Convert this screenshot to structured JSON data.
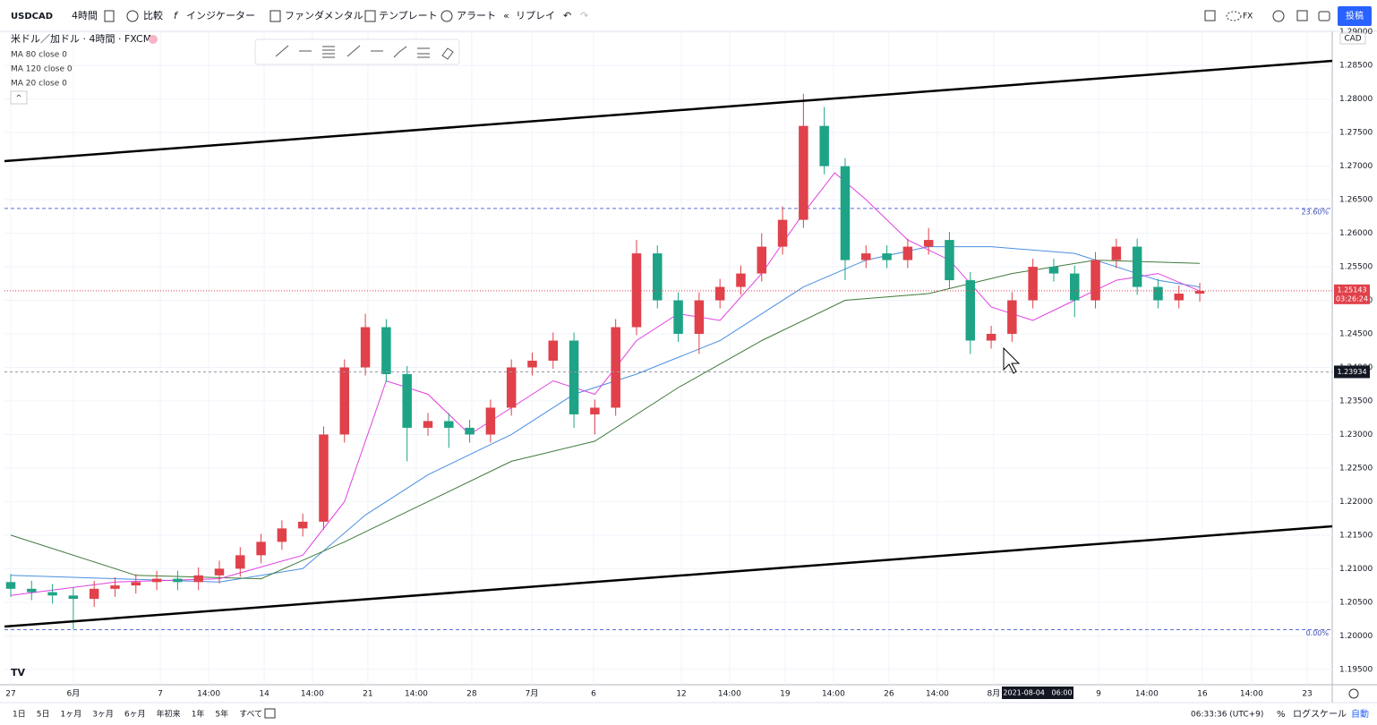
{
  "toolbar": {
    "symbol": "USDCAD",
    "interval": "4時間",
    "compare": "比較",
    "indicators": "インジケーター",
    "fundamentals": "ファンダメンタル",
    "templates": "テンプレート",
    "alert": "アラート",
    "replay": "リプレイ",
    "market": "FX",
    "publish": "投稿"
  },
  "legend": {
    "title": "米ドル／加ドル · 4時間 · FXCM"
  },
  "bottom_bar": {
    "ranges": [
      "1日",
      "5日",
      "1ヶ月",
      "3ヶ月",
      "6ヶ月",
      "年初来",
      "1年",
      "5年",
      "すべて"
    ],
    "clock": "06:33:36 (UTC+9)",
    "percent": "%",
    "log": "ログスケール",
    "auto": "自動"
  },
  "chart_data": {
    "type": "candlestick",
    "currency": "CAD",
    "up_color": "#e0414a",
    "down_color": "#1fa386",
    "xlim": [
      -0.3,
      63.35
    ],
    "ylim": [
      1.1927,
      1.2901
    ],
    "xticks": [
      {
        "value": 0,
        "label": "27"
      },
      {
        "value": 3.0,
        "label": "6月"
      },
      {
        "value": 7.17,
        "label": "7"
      },
      {
        "value": 9.49,
        "label": "14:00"
      },
      {
        "value": 12.15,
        "label": "14"
      },
      {
        "value": 14.46,
        "label": "14:00"
      },
      {
        "value": 17.12,
        "label": "21"
      },
      {
        "value": 19.44,
        "label": "14:00"
      },
      {
        "value": 22.1,
        "label": "28"
      },
      {
        "value": 24.98,
        "label": "7月"
      },
      {
        "value": 27.94,
        "label": "6"
      },
      {
        "value": 32.15,
        "label": "12"
      },
      {
        "value": 34.46,
        "label": "14:00"
      },
      {
        "value": 37.12,
        "label": "19"
      },
      {
        "value": 39.44,
        "label": "14:00"
      },
      {
        "value": 42.1,
        "label": "26"
      },
      {
        "value": 44.42,
        "label": "14:00"
      },
      {
        "value": 47.12,
        "label": "8月"
      },
      {
        "value": 52.15,
        "label": "9"
      },
      {
        "value": 54.46,
        "label": "14:00"
      },
      {
        "value": 57.12,
        "label": "16"
      },
      {
        "value": 59.48,
        "label": "14:00"
      },
      {
        "value": 62.15,
        "label": "23"
      }
    ],
    "yticks": [
      {
        "value": 1.195,
        "label": "1.19500"
      },
      {
        "value": 1.2,
        "label": "1.20000"
      },
      {
        "value": 1.205,
        "label": "1.20500"
      },
      {
        "value": 1.21,
        "label": "1.21000"
      },
      {
        "value": 1.215,
        "label": "1.21500"
      },
      {
        "value": 1.22,
        "label": "1.22000"
      },
      {
        "value": 1.225,
        "label": "1.22500"
      },
      {
        "value": 1.23,
        "label": "1.23000"
      },
      {
        "value": 1.235,
        "label": "1.23500"
      },
      {
        "value": 1.24,
        "label": "1.24000"
      },
      {
        "value": 1.245,
        "label": "1.24500"
      },
      {
        "value": 1.25,
        "label": "1.25000"
      },
      {
        "value": 1.255,
        "label": "1.25500"
      },
      {
        "value": 1.26,
        "label": "1.26000"
      },
      {
        "value": 1.265,
        "label": "1.26500"
      },
      {
        "value": 1.27,
        "label": "1.27000"
      },
      {
        "value": 1.275,
        "label": "1.27500"
      },
      {
        "value": 1.28,
        "label": "1.28000"
      },
      {
        "value": 1.285,
        "label": "1.28500"
      },
      {
        "value": 1.29,
        "label": "1.29000"
      }
    ],
    "grid": true,
    "candles": {
      "x": [
        0,
        1,
        2,
        3,
        4,
        5,
        6,
        7,
        8,
        9,
        10,
        11,
        12,
        13,
        14,
        15,
        16,
        17,
        18,
        19,
        20,
        21,
        22,
        23,
        24,
        25,
        26,
        27,
        28,
        29,
        30,
        31,
        32,
        33,
        34,
        35,
        36,
        37,
        38,
        39,
        40,
        41,
        42,
        43,
        44,
        45,
        46,
        47,
        48,
        49,
        50,
        51,
        52,
        53,
        54,
        55,
        56,
        57
      ],
      "open": [
        1.208,
        1.207,
        1.2065,
        1.206,
        1.2055,
        1.207,
        1.2075,
        1.208,
        1.2085,
        1.208,
        1.209,
        1.21,
        1.212,
        1.214,
        1.216,
        1.217,
        1.23,
        1.24,
        1.246,
        1.239,
        1.231,
        1.232,
        1.231,
        1.23,
        1.234,
        1.24,
        1.241,
        1.244,
        1.233,
        1.234,
        1.246,
        1.257,
        1.25,
        1.245,
        1.25,
        1.252,
        1.254,
        1.258,
        1.262,
        1.276,
        1.27,
        1.256,
        1.257,
        1.256,
        1.258,
        1.259,
        1.253,
        1.244,
        1.245,
        1.25,
        1.255,
        1.254,
        1.25,
        1.256,
        1.258,
        1.252,
        1.25,
        1.251
      ],
      "high": [
        1.2092,
        1.2082,
        1.2077,
        1.2072,
        1.2082,
        1.2087,
        1.2092,
        1.2097,
        1.2097,
        1.2102,
        1.2112,
        1.2132,
        1.2152,
        1.2172,
        1.2182,
        1.2312,
        1.2412,
        1.248,
        1.2472,
        1.2402,
        1.2332,
        1.2332,
        1.2322,
        1.2352,
        1.2412,
        1.2422,
        1.2452,
        1.2452,
        1.2352,
        1.2472,
        1.259,
        1.2582,
        1.2512,
        1.2512,
        1.2532,
        1.2552,
        1.26,
        1.264,
        1.2808,
        1.2788,
        1.2712,
        1.2582,
        1.2582,
        1.2592,
        1.2608,
        1.2602,
        1.2542,
        1.2462,
        1.2512,
        1.2562,
        1.2562,
        1.2552,
        1.2572,
        1.2592,
        1.2592,
        1.2532,
        1.2522,
        1.2526
      ],
      "low": [
        1.2058,
        1.2053,
        1.2048,
        1.201,
        1.2043,
        1.2058,
        1.2063,
        1.2068,
        1.2068,
        1.2068,
        1.2078,
        1.2088,
        1.2108,
        1.2128,
        1.2148,
        1.2158,
        1.2288,
        1.2388,
        1.2378,
        1.226,
        1.2298,
        1.228,
        1.2288,
        1.2288,
        1.2328,
        1.2388,
        1.2398,
        1.231,
        1.23,
        1.2328,
        1.2448,
        1.2488,
        1.2438,
        1.242,
        1.2488,
        1.2508,
        1.2528,
        1.2568,
        1.2608,
        1.2688,
        1.253,
        1.2548,
        1.2548,
        1.2548,
        1.2568,
        1.2518,
        1.242,
        1.2428,
        1.2438,
        1.2488,
        1.2528,
        1.2475,
        1.2488,
        1.2548,
        1.2508,
        1.2488,
        1.2488,
        1.2498
      ],
      "close": [
        1.207,
        1.2065,
        1.206,
        1.2055,
        1.207,
        1.2075,
        1.208,
        1.2085,
        1.208,
        1.209,
        1.21,
        1.212,
        1.214,
        1.216,
        1.217,
        1.23,
        1.24,
        1.246,
        1.239,
        1.231,
        1.232,
        1.231,
        1.23,
        1.234,
        1.24,
        1.241,
        1.244,
        1.233,
        1.234,
        1.246,
        1.257,
        1.25,
        1.245,
        1.25,
        1.252,
        1.254,
        1.258,
        1.262,
        1.276,
        1.27,
        1.256,
        1.257,
        1.256,
        1.258,
        1.259,
        1.253,
        1.244,
        1.245,
        1.25,
        1.255,
        1.254,
        1.25,
        1.256,
        1.258,
        1.252,
        1.25,
        1.251,
        1.2514
      ]
    },
    "ma_lines": [
      {
        "name": "MA 80 close 0",
        "color": "#4a8fe0",
        "x": [
          0,
          10,
          14,
          17,
          20,
          24,
          27,
          30,
          34,
          38,
          41,
          44,
          47,
          51,
          55,
          57
        ],
        "values": [
          1.209,
          1.208,
          1.21,
          1.218,
          1.224,
          1.23,
          1.236,
          1.239,
          1.244,
          1.252,
          1.256,
          1.258,
          1.258,
          1.257,
          1.253,
          1.252
        ]
      },
      {
        "name": "MA 120 close 0",
        "color": "#3f7a3a",
        "x": [
          0,
          6,
          12,
          16,
          20,
          24,
          28,
          32,
          36,
          40,
          44,
          48,
          52,
          57
        ],
        "values": [
          1.215,
          1.209,
          1.2085,
          1.214,
          1.22,
          1.226,
          1.229,
          1.237,
          1.244,
          1.25,
          1.251,
          1.254,
          1.256,
          1.2555
        ]
      },
      {
        "name": "MA 20 close 0",
        "color": "#e040e0",
        "x": [
          0,
          5,
          10,
          14,
          16,
          18,
          20,
          22,
          24,
          26,
          28,
          30,
          32,
          34,
          36,
          38,
          39.5,
          41,
          43,
          45,
          47,
          49,
          51,
          53,
          55,
          57
        ],
        "values": [
          1.206,
          1.208,
          1.2085,
          1.212,
          1.22,
          1.238,
          1.236,
          1.23,
          1.234,
          1.238,
          1.236,
          1.244,
          1.248,
          1.247,
          1.254,
          1.263,
          1.269,
          1.265,
          1.259,
          1.256,
          1.249,
          1.247,
          1.25,
          1.253,
          1.254,
          1.2514
        ]
      }
    ],
    "fib_levels": [
      {
        "price": 1.2637,
        "label": "23.60%"
      },
      {
        "price": 1.2009,
        "label": "0.00%"
      }
    ],
    "last_price": 1.25143,
    "countdown": "03:26:24",
    "crosshair": {
      "price": 1.23934,
      "time": "2021-08-04   06:00"
    }
  }
}
